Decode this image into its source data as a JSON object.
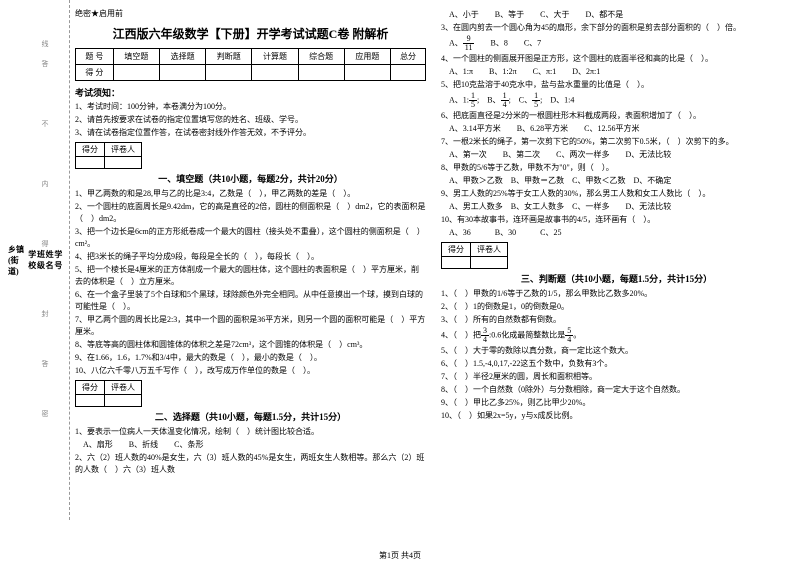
{
  "secret": "绝密★启用前",
  "title": "江西版六年级数学【下册】开学考试试题C卷 附解析",
  "score_header": [
    "题 号",
    "填空题",
    "选择题",
    "判断题",
    "计算题",
    "综合题",
    "应用题",
    "总分"
  ],
  "score_row_label": "得 分",
  "notice_title": "考试须知：",
  "notices": [
    "1、考试时间：100分钟，本卷满分为100分。",
    "2、请首先按要求在试卷的指定位置填写您的姓名、班级、学号。",
    "3、请在试卷指定位置作答，在试卷密封线外作答无效，不予评分。"
  ],
  "grader_labels": [
    "得分",
    "评卷人"
  ],
  "section1_title": "一、填空题（共10小题，每题2分，共计20分）",
  "fill_q": [
    "1、甲乙两数的和是28,甲与乙的比是3:4，乙数是（　），甲乙两数的差是（　）。",
    "2、一个圆柱的底面周长是9.42dm，它的高是直径的2倍，圆柱的侧面积是（　）dm2，它的表面积是（　）dm2。",
    "3、把一个边长是6cm的正方形纸卷成一个最大的圆柱（接头处不重叠），这个圆柱的侧面积是（　）cm²。",
    "4、把3米长的绳子平均分成9段，每段是全长的（　），每段长（　）。",
    "5、把一个棱长是4厘米的正方体削成一个最大的圆柱体，这个圆柱的表面积是（　）平方厘米，削去的体积是（　）立方厘米。",
    "6、在一个盒子里装了5个白球和5个黑球，球除颜色外完全相同。从中任意摸出一个球，摸到白球的可能性是（　）。",
    "7、甲乙两个圆的周长比是2:3，其中一个圆的面积是36平方米，则另一个圆的面积可能是（　）平方厘米。",
    "8、等底等高的圆柱体和圆锥体的体积之差是72cm³，这个圆锥的体积是（　）cm³。",
    "9、在1.66，1.6，1.7%和3/4中，最大的数是（　），最小的数是（　）。",
    "10、八亿六千零八万五千写作（　），改写成万作单位的数是（　）。"
  ],
  "section2_title": "二、选择题（共10小题，每题1.5分，共计15分）",
  "choice_q": [
    "1、要表示一位病人一天体温变化情况，绘制（　）统计图比较合适。",
    "　A、扇形　　B、折线　　C、条形",
    "2、六（2）班人数的40%是女生，六（3）班人数的45%是女生，两班女生人数相等。那么六（2）班的人数（　）六（3）班人数"
  ],
  "right_items": [
    "　A、小于　　B、等于　　C、大于　　D、都不是",
    "3、在圆内剪去一个圆心角为45的扇形，余下部分的面积是剪去部分面积的（　）倍。",
    {
      "type": "frac_opts",
      "pre": "　A、",
      "frac": {
        "n": "9",
        "d": "11"
      },
      "post": "　　B、8　　C、7"
    },
    "4、一个圆柱的侧面展开图是正方形，这个圆柱的底面半径和高的比是（　）。",
    "　A、1:π　　B、1:2π　　C、π:1　　D、2π:1",
    "5、把10克盐溶于40克水中，盐与盐水重量的比值是（　）。",
    {
      "type": "frac_line",
      "items": [
        {
          "label": "A、1:",
          "frac": {
            "n": "1",
            "d": "5"
          }
        },
        {
          "label": "　B、",
          "frac": {
            "n": "1",
            "d": "4"
          }
        },
        {
          "label": "　C、",
          "frac": {
            "n": "1",
            "d": "5"
          }
        },
        {
          "label": "　D、1:4"
        }
      ]
    },
    "6、把底面直径是2分米的一根圆柱形木料截成两段，表面积增加了（　）。",
    "　A、3.14平方米　　B、6.28平方米　　C、12.56平方米",
    "7、一根2米长的绳子，第一次剪下它的50%，第二次剪下0.5米，（　）次剪下的多。",
    "　A、第一次　　B、第二次　　C、两次一样多　　D、无法比较",
    "8、甲数的5/6等于乙数，甲数不为\"0\"，则（　）。",
    "　A、甲数＞乙数　B、甲数＝乙数　C、甲数＜乙数　D、不确定",
    "",
    "9、男工人数的25%等于女工人数的30%，那么男工人数和女工人数比（　）。",
    "　A、男工人数多　B、女工人数多　C、一样多　　D、无法比较",
    "10、有30本故事书，连环画是故事书的4/5，连环画有（　）。",
    "　A、36　　　B、30　　　C、25"
  ],
  "section3_title": "三、判断题（共10小题，每题1.5分，共计15分）",
  "judge_q": [
    "1、（　）甲数的1/6等于乙数的1/5，那么甲数比乙数多20%。",
    "2、（　）1的倒数是1，0的倒数是0。",
    "3、（　）所有的自然数都有倒数。",
    {
      "type": "frac_judge",
      "pre": "4、（　）把",
      "frac1": {
        "n": "3",
        "d": "4"
      },
      "mid": ":0.6化成最简整数比是",
      "frac2": {
        "n": "5",
        "d": "4"
      },
      "post": "。"
    },
    "5、（　）大于零的数除以真分数，商一定比这个数大。",
    "6、（　）1.5,-4,0,17,-22这五个数中，负数有3个。",
    "7、（　）半径2厘米的圆，周长和面积相等。",
    "8、（　）一个自然数（0除外）与分数相除，商一定大于这个自然数。",
    "9、（　）甲比乙多25%，则乙比甲少20%。",
    "10、（　）如果2x=5y，y与x成反比例。"
  ],
  "footer": "第1页 共4页",
  "sidebar": [
    "学号",
    "姓名",
    "班级",
    "学校",
    "乡镇(街道)"
  ],
  "vtexts": [
    "线",
    "内",
    "不",
    "答",
    "封",
    "得",
    "密",
    "答"
  ]
}
